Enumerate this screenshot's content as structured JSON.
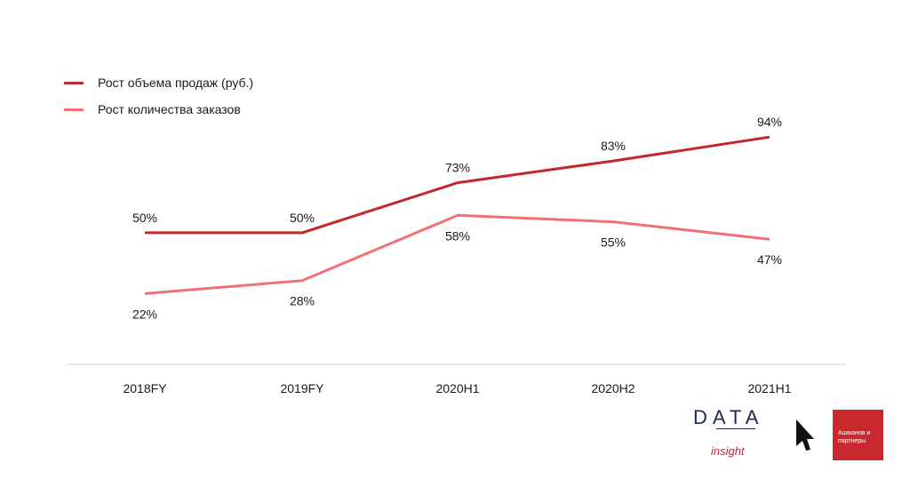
{
  "chart_data": {
    "type": "line",
    "categories": [
      "2018FY",
      "2019FY",
      "2020H1",
      "2020H2",
      "2021H1"
    ],
    "series": [
      {
        "name": "Рост объема продаж (руб.)",
        "values": [
          50,
          50,
          73,
          83,
          94
        ],
        "color": "#c4262e",
        "labels": [
          "50%",
          "50%",
          "73%",
          "83%",
          "94%"
        ],
        "label_position": "above"
      },
      {
        "name": "Рост количества заказов",
        "values": [
          22,
          28,
          58,
          55,
          47
        ],
        "color": "#f07277",
        "labels": [
          "22%",
          "28%",
          "58%",
          "55%",
          "47%"
        ],
        "label_position": "below"
      }
    ],
    "legend_position": "top-left",
    "grid": false
  },
  "logos": {
    "data_insight": {
      "letters": "DATA",
      "sub": "insight"
    },
    "ashmanov": {
      "text": "Ашманов и партнеры"
    }
  }
}
